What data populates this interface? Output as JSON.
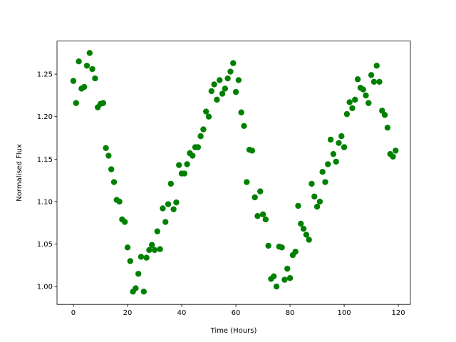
{
  "chart_data": {
    "type": "scatter",
    "x_label": "Time (Hours)",
    "y_label": "Normalised Flux",
    "color": "#008000",
    "x": [
      0,
      1,
      2,
      3,
      4,
      5,
      6,
      7,
      8,
      9,
      10,
      11,
      12,
      13,
      14,
      15,
      16,
      17,
      18,
      19,
      20,
      21,
      22,
      23,
      24,
      25,
      26,
      27,
      28,
      29,
      30,
      31,
      32,
      33,
      34,
      35,
      36,
      37,
      38,
      39,
      40,
      41,
      42,
      43,
      44,
      45,
      46,
      47,
      48,
      49,
      50,
      51,
      52,
      53,
      54,
      55,
      56,
      57,
      58,
      59,
      60,
      61,
      62,
      63,
      64,
      65,
      66,
      67,
      68,
      69,
      70,
      71,
      72,
      73,
      74,
      75,
      76,
      77,
      78,
      79,
      80,
      81,
      82,
      83,
      84,
      85,
      86,
      87,
      88,
      89,
      90,
      91,
      92,
      93,
      94,
      95,
      96,
      97,
      98,
      99,
      100,
      101,
      102,
      103,
      104,
      105,
      106,
      107,
      108,
      109,
      110,
      111,
      112,
      113,
      114,
      115,
      116,
      117,
      118,
      119
    ],
    "values": [
      1.242,
      1.216,
      1.265,
      1.233,
      1.235,
      1.26,
      1.275,
      1.256,
      1.245,
      1.211,
      1.215,
      1.216,
      1.163,
      1.154,
      1.138,
      1.123,
      1.102,
      1.1,
      1.079,
      1.076,
      1.046,
      1.03,
      0.994,
      0.998,
      1.015,
      1.035,
      0.994,
      1.034,
      1.043,
      1.049,
      1.043,
      1.065,
      1.044,
      1.092,
      1.076,
      1.097,
      1.121,
      1.091,
      1.099,
      1.143,
      1.133,
      1.133,
      1.144,
      1.157,
      1.154,
      1.164,
      1.164,
      1.177,
      1.185,
      1.206,
      1.2,
      1.23,
      1.238,
      1.22,
      1.243,
      1.227,
      1.233,
      1.245,
      1.253,
      1.263,
      1.229,
      1.243,
      1.205,
      1.189,
      1.123,
      1.161,
      1.16,
      1.105,
      1.083,
      1.112,
      1.085,
      1.079,
      1.048,
      1.009,
      1.012,
      1.0,
      1.047,
      1.046,
      1.008,
      1.021,
      1.01,
      1.037,
      1.041,
      1.095,
      1.074,
      1.068,
      1.061,
      1.055,
      1.121,
      1.106,
      1.094,
      1.1,
      1.135,
      1.123,
      1.144,
      1.173,
      1.156,
      1.147,
      1.169,
      1.177,
      1.164,
      1.203,
      1.217,
      1.21,
      1.22,
      1.244,
      1.234,
      1.232,
      1.225,
      1.216,
      1.249,
      1.241,
      1.26,
      1.241,
      1.207,
      1.202,
      1.187,
      1.156,
      1.153,
      1.16
    ],
    "xlim": [
      -6.05,
      124.45
    ],
    "xticks": [
      0,
      20,
      40,
      60,
      80,
      100,
      120
    ],
    "ylim": [
      0.979,
      1.289
    ],
    "yticks": [
      {
        "value": 1.0,
        "label": "1.00"
      },
      1.05,
      {
        "value": 1.1,
        "label": "1.10"
      },
      1.15,
      {
        "value": 1.2,
        "label": "1.20"
      },
      1.25
    ]
  }
}
